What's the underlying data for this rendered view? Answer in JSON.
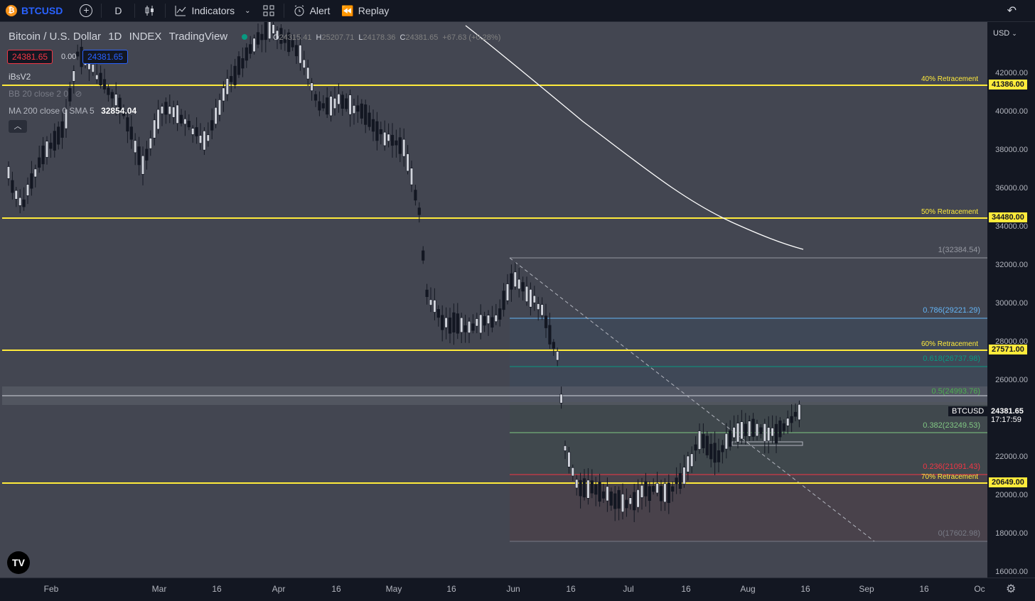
{
  "toolbar": {
    "symbol": "BTCUSD",
    "interval": "D",
    "indicators_label": "Indicators",
    "alert_label": "Alert",
    "replay_label": "Replay"
  },
  "legend": {
    "title": "Bitcoin / U.S. Dollar",
    "interval": "1D",
    "exchange": "INDEX",
    "source": "TradingView",
    "ohlc": {
      "o_label": "O",
      "o_value": "24315.41",
      "h_label": "H",
      "h_value": "25207.71",
      "l_label": "L",
      "l_value": "24178.36",
      "c_label": "C",
      "c_value": "24381.65",
      "change": "+67.63 (+0.28%)"
    },
    "sell_price": "24381.65",
    "spread": "0.00",
    "buy_price": "24381.65",
    "indicator1": "iBsV2",
    "indicator2": "BB 20 close 2 0",
    "indicator3_name": "MA 200 close 0 SMA 5",
    "indicator3_value": "32854.04"
  },
  "price_axis": {
    "currency": "USD",
    "ticks": [
      "42000.00",
      "40000.00",
      "38000.00",
      "36000.00",
      "34000.00",
      "32000.00",
      "30000.00",
      "28000.00",
      "26000.00",
      "22000.00",
      "20000.00",
      "18000.00",
      "16000.00"
    ],
    "current_symbol": "BTCUSD",
    "current_price": "24381.65",
    "countdown": "17:17:59"
  },
  "levels": [
    {
      "label": "40% Retracement",
      "value": "41386.00"
    },
    {
      "label": "50% Retracement",
      "value": "34480.00"
    },
    {
      "label": "60% Retracement",
      "value": "27571.00"
    },
    {
      "label": "70% Retracement",
      "value": "20649.00"
    }
  ],
  "fib": [
    {
      "label": "1(32384.54)",
      "color": "#9598a1"
    },
    {
      "label": "0.786(29221.29)",
      "color": "#64b5f6"
    },
    {
      "label": "0.618(26737.98)",
      "color": "#089981"
    },
    {
      "label": "0.5(24993.76)",
      "color": "#4caf50"
    },
    {
      "label": "0.382(23249.53)",
      "color": "#81c784"
    },
    {
      "label": "0.236(21091.43)",
      "color": "#f23645"
    },
    {
      "label": "0(17602.98)",
      "color": "#787b86"
    }
  ],
  "time_axis": [
    "Feb",
    "Mar",
    "16",
    "Apr",
    "16",
    "May",
    "16",
    "Jun",
    "16",
    "Jul",
    "16",
    "Aug",
    "16",
    "Sep",
    "16",
    "Oc"
  ],
  "colors": {
    "level": "#ffeb3b",
    "up": "#d1d4dc",
    "down": "#131722"
  }
}
